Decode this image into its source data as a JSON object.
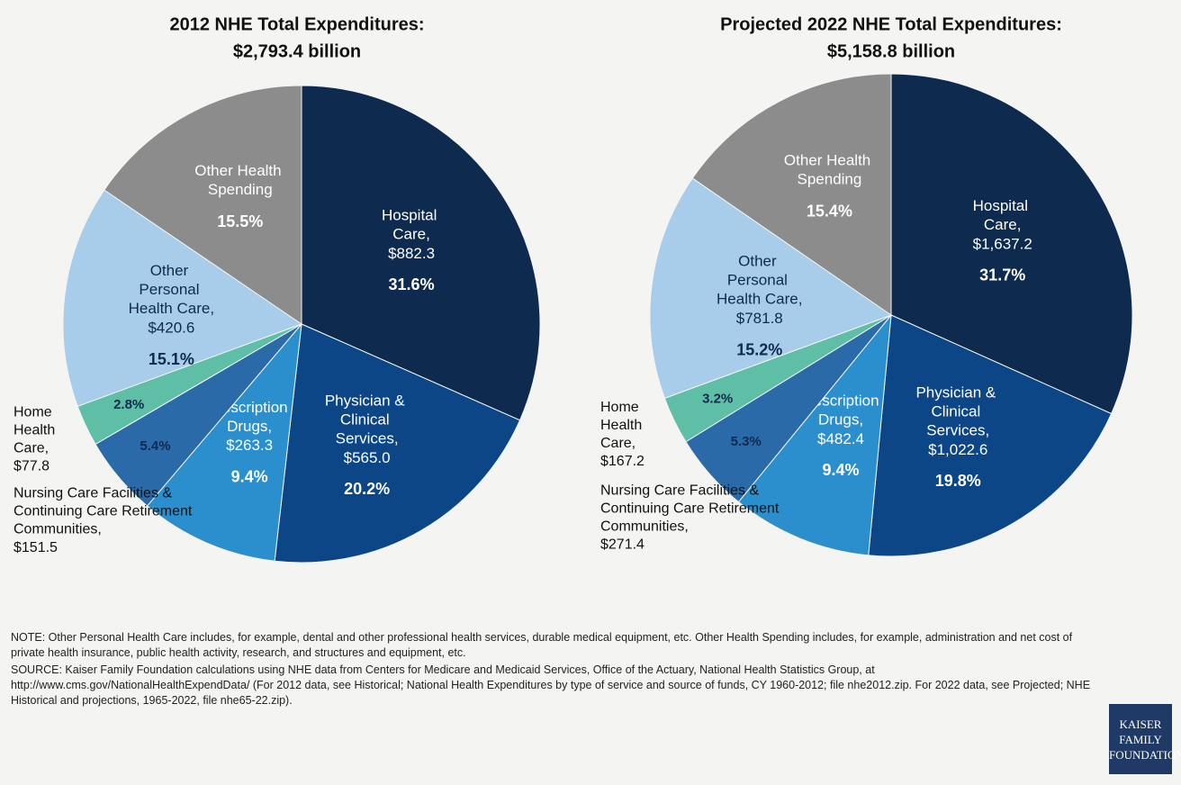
{
  "chart_data": [
    {
      "type": "pie",
      "title": "2012 NHE Total Expenditures:",
      "subtitle": "$2,793.4 billion",
      "categories": [
        "Hospital Care,",
        "Physician & Clinical Services,",
        "Prescription Drugs,",
        "Nursing Care Facilities & Continuing Care Retirement Communities,",
        "Home Health Care,",
        "Other Personal Health Care,",
        "Other Health Spending"
      ],
      "amounts": [
        "$882.3",
        "$565.0",
        "$263.3",
        "$151.5",
        "$77.8",
        "$420.6",
        null
      ],
      "values": [
        31.6,
        20.2,
        9.4,
        5.4,
        2.8,
        15.1,
        15.5
      ],
      "value_labels": [
        "31.6%",
        "20.2%",
        "9.4%",
        "5.4%",
        "2.8%",
        "15.1%",
        "15.5%"
      ],
      "colors": [
        "#0f2a4f",
        "#0c4687",
        "#2a8fcc",
        "#2a6aa8",
        "#5fbfa6",
        "#a8cdea",
        "#8c8c8c"
      ]
    },
    {
      "type": "pie",
      "title": "Projected 2022 NHE Total Expenditures:",
      "subtitle": "$5,158.8 billion",
      "categories": [
        "Hospital Care,",
        "Physician & Clinical Services,",
        "Prescription Drugs,",
        "Nursing Care Facilities & Continuing Care Retirement Communities,",
        "Home Health Care,",
        "Other Personal Health Care,",
        "Other Health Spending"
      ],
      "amounts": [
        "$1,637.2",
        "$1,022.6",
        "$482.4",
        "$271.4",
        "$167.2",
        "$781.8",
        null
      ],
      "values": [
        31.7,
        19.8,
        9.4,
        5.3,
        3.2,
        15.2,
        15.4
      ],
      "value_labels": [
        "31.7%",
        "19.8%",
        "9.4%",
        "5.3%",
        "3.2%",
        "15.2%",
        "15.4%"
      ],
      "colors": [
        "#0f2a4f",
        "#0c4687",
        "#2a8fcc",
        "#2a6aa8",
        "#5fbfa6",
        "#a8cdea",
        "#8c8c8c"
      ]
    }
  ],
  "notes": {
    "note": "NOTE: Other Personal Health Care includes, for example, dental and other professional health services, durable medical equipment, etc. Other Health Spending includes, for example, administration and net cost of private health insurance, public health activity, research, and structures and equipment, etc.",
    "source": "SOURCE: Kaiser Family Foundation calculations using NHE data from Centers for Medicare and Medicaid Services, Office of the Actuary, National Health Statistics Group, at http://www.cms.gov/NationalHealthExpendData/ (For 2012 data, see Historical; National Health Expenditures by type of service and source of funds, CY 1960-2012; file nhe2012.zip. For 2022 data, see Projected; NHE Historical and projections, 1965-2022, file nhe65-22.zip).",
    "logo": [
      "KAISER",
      "FAMILY",
      "FOUNDATION"
    ]
  }
}
